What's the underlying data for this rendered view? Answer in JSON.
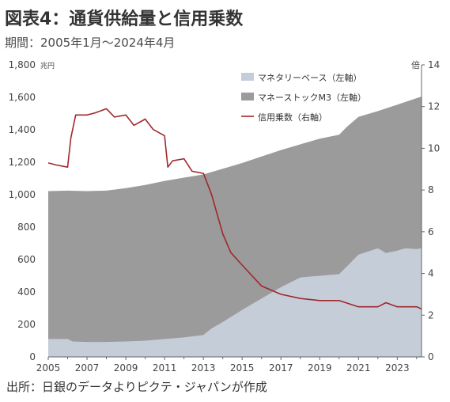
{
  "title": "図表4：通貨供給量と信用乗数",
  "period": "期間：2005年1月～2024年4月",
  "source": "出所：日銀のデータよりピクテ・ジャパンが作成",
  "colors": {
    "base": "#c5cdd9",
    "m3": "#9b9b9b",
    "multiplier": "#a0282d",
    "axis": "#666666"
  },
  "chart_data": {
    "type": "area",
    "x_range": [
      "2005-01",
      "2024-04"
    ],
    "x_ticks": [
      "2005",
      "2007",
      "2009",
      "2011",
      "2013",
      "2015",
      "2017",
      "2019",
      "2021",
      "2023"
    ],
    "left_axis": {
      "unit": "兆円",
      "ylim": [
        0,
        1800
      ],
      "ticks": [
        "0",
        "200",
        "400",
        "600",
        "800",
        "1,000",
        "1,200",
        "1,400",
        "1,600",
        "1,800"
      ]
    },
    "right_axis": {
      "unit": "倍",
      "ylim": [
        0,
        14
      ],
      "ticks": [
        "0",
        "2",
        "4",
        "6",
        "8",
        "10",
        "12",
        "14"
      ]
    },
    "legend": [
      {
        "label": "マネタリーベース（左軸）",
        "kind": "area"
      },
      {
        "label": "マネーストックM3（左軸）",
        "kind": "area"
      },
      {
        "label": "信用乗数（右軸）",
        "kind": "line"
      }
    ],
    "legend_position": "top-right",
    "series": [
      {
        "name": "マネーストックM3（左軸）",
        "axis": "left",
        "x": [
          "2005-01",
          "2006-01",
          "2007-01",
          "2008-01",
          "2009-01",
          "2010-01",
          "2011-01",
          "2012-01",
          "2013-01",
          "2014-01",
          "2015-01",
          "2016-01",
          "2017-01",
          "2018-01",
          "2019-01",
          "2020-01",
          "2020-06",
          "2021-01",
          "2022-01",
          "2023-01",
          "2024-01",
          "2024-04"
        ],
        "values": [
          1022,
          1025,
          1022,
          1025,
          1040,
          1060,
          1085,
          1105,
          1125,
          1160,
          1195,
          1235,
          1275,
          1310,
          1345,
          1370,
          1420,
          1480,
          1515,
          1555,
          1595,
          1605
        ]
      },
      {
        "name": "マネタリーベース（左軸）",
        "axis": "left",
        "x": [
          "2005-01",
          "2006-01",
          "2006-04",
          "2007-01",
          "2008-01",
          "2009-01",
          "2010-01",
          "2011-01",
          "2012-01",
          "2013-01",
          "2013-06",
          "2014-01",
          "2015-01",
          "2016-01",
          "2017-01",
          "2018-01",
          "2019-01",
          "2020-01",
          "2020-06",
          "2021-01",
          "2022-01",
          "2022-06",
          "2023-01",
          "2023-06",
          "2024-01",
          "2024-04"
        ],
        "values": [
          110,
          110,
          95,
          92,
          92,
          95,
          100,
          110,
          120,
          135,
          175,
          215,
          290,
          360,
          430,
          490,
          500,
          510,
          560,
          630,
          670,
          640,
          655,
          670,
          665,
          670
        ]
      },
      {
        "name": "信用乗数（右軸）",
        "axis": "right",
        "x": [
          "2005-01",
          "2005-06",
          "2006-01",
          "2006-03",
          "2006-06",
          "2007-01",
          "2007-06",
          "2008-01",
          "2008-06",
          "2009-01",
          "2009-06",
          "2010-01",
          "2010-06",
          "2011-01",
          "2011-03",
          "2011-06",
          "2012-01",
          "2012-06",
          "2013-01",
          "2013-06",
          "2014-01",
          "2014-06",
          "2015-01",
          "2016-01",
          "2017-01",
          "2018-01",
          "2019-01",
          "2020-01",
          "2021-01",
          "2022-01",
          "2022-06",
          "2023-01",
          "2024-01",
          "2024-04"
        ],
        "values": [
          9.3,
          9.2,
          9.1,
          10.5,
          11.6,
          11.6,
          11.7,
          11.9,
          11.5,
          11.6,
          11.1,
          11.4,
          10.9,
          10.6,
          9.1,
          9.4,
          9.5,
          8.9,
          8.8,
          7.8,
          5.9,
          5.0,
          4.4,
          3.4,
          3.0,
          2.8,
          2.7,
          2.7,
          2.4,
          2.4,
          2.6,
          2.4,
          2.4,
          2.3
        ]
      }
    ]
  }
}
